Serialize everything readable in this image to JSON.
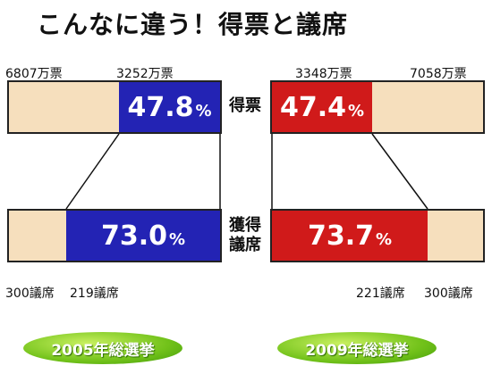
{
  "title": "こんなに違う！得票と議席",
  "labels": {
    "votes": "得票",
    "seats_line1": "獲得",
    "seats_line2": "議席",
    "pct_unit": "%"
  },
  "colors": {
    "blue": "#2323b4",
    "red": "#d01a1a",
    "bar_bg": "#f6dfbd",
    "badge": "#72c21a"
  },
  "chart_data": [
    {
      "type": "bar",
      "election": "2005年総選挙",
      "votes": {
        "party": 3252,
        "total": 6807,
        "party_label": "3252万票",
        "total_label": "6807万票",
        "pct": 47.8,
        "pct_label": "47.8"
      },
      "seats": {
        "party": 219,
        "total": 300,
        "party_label": "219議席",
        "total_label": "300議席",
        "pct": 73.0,
        "pct_label": "73.0"
      }
    },
    {
      "type": "bar",
      "election": "2009年総選挙",
      "votes": {
        "party": 3348,
        "total": 7058,
        "party_label": "3348万票",
        "total_label": "7058万票",
        "pct": 47.4,
        "pct_label": "47.4"
      },
      "seats": {
        "party": 221,
        "total": 300,
        "party_label": "221議席",
        "total_label": "300議席",
        "pct": 73.7,
        "pct_label": "73.7"
      }
    }
  ]
}
